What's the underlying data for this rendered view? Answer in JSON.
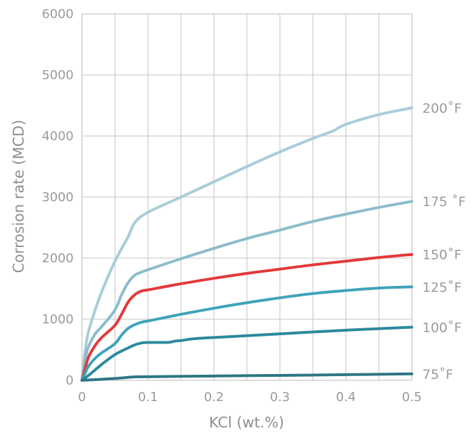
{
  "chart_data": {
    "type": "line",
    "title": "",
    "xlabel": "KCl (wt.%)",
    "ylabel": "Corrosion rate (MCD)",
    "xlim": [
      0,
      0.5
    ],
    "ylim": [
      0,
      6000
    ],
    "x_ticks": [
      0,
      0.1,
      0.2,
      0.3,
      0.4,
      0.5
    ],
    "x_tick_labels": [
      "0",
      "0.1",
      "0.2",
      "0.3",
      "0.4",
      "0.5"
    ],
    "y_ticks": [
      0,
      1000,
      2000,
      3000,
      4000,
      5000,
      6000
    ],
    "y_tick_labels": [
      "0",
      "1000",
      "2000",
      "3000",
      "4000",
      "5000",
      "6000"
    ],
    "grid": true,
    "series": [
      {
        "name": "200˚F",
        "color": "#a9cdd8",
        "x": [
          0,
          0.005,
          0.01,
          0.02,
          0.03,
          0.05,
          0.07,
          0.08,
          0.1,
          0.15,
          0.2,
          0.25,
          0.3,
          0.35,
          0.38,
          0.4,
          0.45,
          0.5
        ],
        "y": [
          0,
          500,
          800,
          1150,
          1450,
          1950,
          2350,
          2580,
          2750,
          3000,
          3250,
          3500,
          3740,
          3960,
          4080,
          4190,
          4350,
          4460
        ]
      },
      {
        "name": "175 ˚F",
        "color": "#8cbccb",
        "x": [
          0,
          0.005,
          0.01,
          0.02,
          0.03,
          0.05,
          0.06,
          0.07,
          0.08,
          0.09,
          0.1,
          0.15,
          0.2,
          0.25,
          0.3,
          0.35,
          0.4,
          0.45,
          0.5
        ],
        "y": [
          0,
          350,
          550,
          760,
          880,
          1150,
          1400,
          1600,
          1720,
          1770,
          1810,
          1990,
          2160,
          2320,
          2460,
          2600,
          2720,
          2830,
          2930
        ]
      },
      {
        "name": "150˚F",
        "color": "#e3383a",
        "x": [
          0,
          0.005,
          0.01,
          0.02,
          0.03,
          0.05,
          0.06,
          0.07,
          0.08,
          0.09,
          0.1,
          0.15,
          0.2,
          0.25,
          0.3,
          0.35,
          0.4,
          0.45,
          0.5
        ],
        "y": [
          0,
          200,
          380,
          570,
          700,
          900,
          1080,
          1280,
          1400,
          1460,
          1480,
          1580,
          1670,
          1750,
          1820,
          1890,
          1950,
          2010,
          2060
        ]
      },
      {
        "name": "125˚F",
        "color": "#3ea4b9",
        "x": [
          0,
          0.005,
          0.01,
          0.02,
          0.03,
          0.05,
          0.06,
          0.07,
          0.08,
          0.09,
          0.1,
          0.15,
          0.2,
          0.25,
          0.3,
          0.35,
          0.4,
          0.45,
          0.5
        ],
        "y": [
          0,
          120,
          230,
          360,
          450,
          600,
          740,
          850,
          910,
          950,
          970,
          1080,
          1180,
          1270,
          1350,
          1420,
          1470,
          1510,
          1530
        ]
      },
      {
        "name": "100˚F",
        "color": "#2c899d",
        "x": [
          0,
          0.01,
          0.02,
          0.03,
          0.05,
          0.07,
          0.08,
          0.09,
          0.1,
          0.13,
          0.14,
          0.15,
          0.17,
          0.2,
          0.3,
          0.4,
          0.5
        ],
        "y": [
          0,
          80,
          170,
          260,
          420,
          530,
          580,
          610,
          620,
          620,
          640,
          650,
          680,
          700,
          760,
          820,
          870
        ]
      },
      {
        "name": "75˚F",
        "color": "#2d7685",
        "x": [
          0,
          0.02,
          0.05,
          0.08,
          0.1,
          0.2,
          0.3,
          0.4,
          0.5
        ],
        "y": [
          0,
          10,
          30,
          55,
          58,
          70,
          80,
          92,
          105
        ]
      }
    ]
  }
}
